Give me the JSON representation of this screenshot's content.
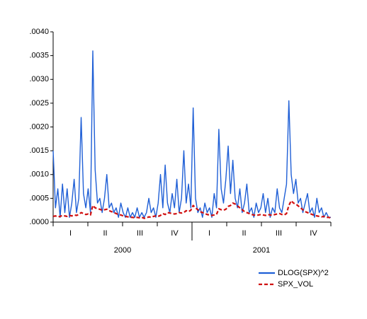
{
  "chart_data": {
    "type": "line",
    "quarters": [
      "I",
      "II",
      "III",
      "IV",
      "I",
      "II",
      "III",
      "IV"
    ],
    "years": [
      "2000",
      "2001"
    ],
    "ylim": [
      0,
      0.004
    ],
    "yticks": [
      {
        "value": 0,
        "label": ".0000"
      },
      {
        "value": 0.0005,
        "label": ".0005"
      },
      {
        "value": 0.001,
        "label": ".0010"
      },
      {
        "value": 0.0015,
        "label": ".0015"
      },
      {
        "value": 0.002,
        "label": ".0020"
      },
      {
        "value": 0.0025,
        "label": ".0025"
      },
      {
        "value": 0.003,
        "label": ".0030"
      },
      {
        "value": 0.0035,
        "label": ".0035"
      },
      {
        "value": 0.004,
        "label": ".0040"
      }
    ],
    "legend": "bottom-right",
    "series": [
      {
        "name": "DLOG(SPX)^2",
        "color": "#1f5fd6",
        "dash": false,
        "values": [
          0.0015,
          0.0003,
          0.0007,
          0.0001,
          0.0008,
          0.0002,
          0.0007,
          0.0001,
          0.0004,
          0.0009,
          0.0002,
          0.0005,
          0.0022,
          0.0006,
          0.0003,
          0.0007,
          0.0002,
          0.0036,
          0.0011,
          0.0004,
          0.0005,
          0.0002,
          0.0005,
          0.001,
          0.0003,
          0.0004,
          0.0002,
          0.0003,
          0.0001,
          0.0004,
          0.0002,
          0.0001,
          0.0003,
          0.0001,
          0.0002,
          0.0001,
          0.0003,
          0.0001,
          0.0002,
          0.0001,
          0.0002,
          0.0005,
          0.0002,
          0.0003,
          0.0001,
          0.0004,
          0.001,
          0.0003,
          0.0012,
          0.0004,
          0.0002,
          0.0006,
          0.0003,
          0.0009,
          0.0002,
          0.0005,
          0.0015,
          0.0004,
          0.0008,
          0.0003,
          0.0024,
          0.0005,
          0.0002,
          0.0003,
          0.0001,
          0.0004,
          0.0002,
          0.0003,
          0.0001,
          0.0006,
          0.0003,
          0.00195,
          0.0007,
          0.0004,
          0.0009,
          0.0016,
          0.0006,
          0.0013,
          0.0005,
          0.0003,
          0.0007,
          0.0002,
          0.0004,
          0.0008,
          0.0002,
          0.0003,
          0.0001,
          0.0004,
          0.0002,
          0.0003,
          0.0006,
          0.0002,
          0.0005,
          0.0001,
          0.0003,
          0.0002,
          0.0007,
          0.0003,
          0.0002,
          0.0005,
          0.0008,
          0.00255,
          0.001,
          0.0006,
          0.0009,
          0.0004,
          0.0005,
          0.0002,
          0.0004,
          0.0006,
          0.0002,
          0.0003,
          0.0001,
          0.0005,
          0.0002,
          0.0003,
          0.0001,
          0.0002,
          0.0001,
          0.0001
        ]
      },
      {
        "name": "SPX_VOL",
        "color": "#d01010",
        "dash": true,
        "values": [
          0.00012,
          0.00013,
          0.00011,
          0.00012,
          0.00014,
          0.00013,
          0.00012,
          0.00014,
          0.00013,
          0.00015,
          0.00014,
          0.00016,
          0.0002,
          0.00018,
          0.00016,
          0.00017,
          0.00015,
          0.00035,
          0.0003,
          0.00028,
          0.00027,
          0.00025,
          0.00026,
          0.00027,
          0.00024,
          0.00022,
          0.0002,
          0.00018,
          0.00016,
          0.00015,
          0.00013,
          0.00012,
          0.00011,
          0.0001,
          0.0001,
          9e-05,
          0.0001,
          9e-05,
          0.0001,
          8e-05,
          9e-05,
          0.00011,
          0.0001,
          0.00012,
          0.00013,
          0.00012,
          0.00014,
          0.00018,
          0.00016,
          0.0002,
          0.00019,
          0.00018,
          0.00017,
          0.00018,
          0.0002,
          0.00019,
          0.0002,
          0.00024,
          0.00022,
          0.00025,
          0.00035,
          0.0003,
          0.00026,
          0.00022,
          0.0002,
          0.00018,
          0.00016,
          0.00015,
          0.00014,
          0.00015,
          0.00016,
          0.00028,
          0.00026,
          0.00025,
          0.00027,
          0.00033,
          0.00035,
          0.0004,
          0.00038,
          0.00034,
          0.0003,
          0.00026,
          0.00022,
          0.0002,
          0.00018,
          0.00016,
          0.00015,
          0.00014,
          0.00015,
          0.00016,
          0.00015,
          0.00014,
          0.00016,
          0.00015,
          0.00014,
          0.00016,
          0.00017,
          0.00018,
          0.00016,
          0.00015,
          0.00018,
          0.00035,
          0.00045,
          0.0004,
          0.00038,
          0.00034,
          0.0003,
          0.00026,
          0.00022,
          0.0002,
          0.00018,
          0.00016,
          0.00014,
          0.00013,
          0.00012,
          0.00011,
          0.00012,
          0.0001,
          0.0001,
          9e-05
        ]
      }
    ]
  }
}
